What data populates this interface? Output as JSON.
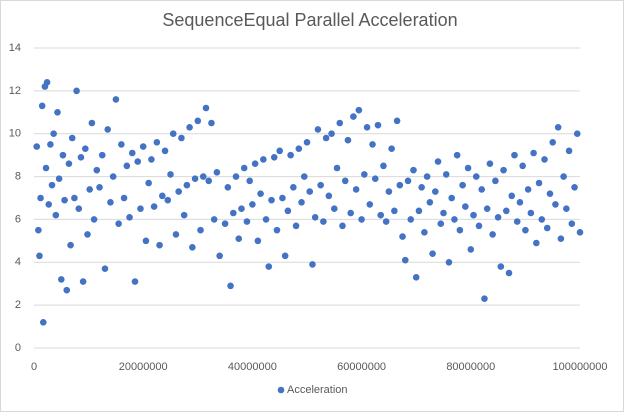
{
  "chart_data": {
    "type": "scatter",
    "title": "SequenceEqual Parallel Acceleration",
    "series": [
      {
        "name": "Acceleration",
        "color": "#4472c4",
        "x": [
          500000,
          800000,
          1000000,
          1200000,
          1500000,
          1700000,
          2000000,
          2200000,
          2400000,
          2700000,
          3000000,
          3300000,
          3600000,
          4000000,
          4300000,
          4600000,
          5000000,
          5300000,
          5600000,
          6000000,
          6400000,
          6700000,
          7000000,
          7400000,
          7800000,
          8200000,
          8600000,
          9000000,
          9400000,
          9800000,
          10200000,
          10600000,
          11000000,
          11500000,
          12000000,
          12500000,
          13000000,
          13500000,
          14000000,
          14500000,
          15000000,
          15500000,
          16000000,
          16500000,
          17000000,
          17500000,
          18000000,
          18500000,
          19000000,
          19500000,
          20000000,
          20500000,
          21000000,
          21500000,
          22000000,
          22500000,
          23000000,
          23500000,
          24000000,
          24500000,
          25000000,
          25500000,
          26000000,
          26500000,
          27000000,
          27500000,
          28000000,
          28500000,
          29000000,
          29500000,
          30000000,
          30500000,
          31000000,
          31500000,
          32000000,
          32500000,
          33000000,
          33500000,
          34000000,
          35000000,
          35500000,
          36000000,
          36500000,
          37000000,
          37500000,
          38000000,
          38500000,
          39000000,
          39500000,
          40000000,
          40500000,
          41000000,
          41500000,
          42000000,
          42500000,
          43000000,
          43500000,
          44000000,
          44500000,
          45000000,
          45500000,
          46000000,
          46500000,
          47000000,
          47500000,
          48000000,
          48500000,
          49000000,
          49500000,
          50000000,
          50500000,
          51000000,
          51500000,
          52000000,
          52500000,
          53000000,
          53500000,
          54000000,
          54500000,
          55000000,
          55500000,
          56000000,
          56500000,
          57000000,
          57500000,
          58000000,
          58500000,
          59000000,
          59500000,
          60000000,
          60500000,
          61000000,
          61500000,
          62000000,
          62500000,
          63000000,
          63500000,
          64000000,
          64500000,
          65000000,
          65500000,
          66000000,
          66500000,
          67000000,
          67500000,
          68000000,
          68500000,
          69000000,
          69500000,
          70000000,
          70500000,
          71000000,
          71500000,
          72000000,
          72500000,
          73000000,
          73500000,
          74000000,
          74500000,
          75000000,
          75500000,
          76000000,
          76500000,
          77000000,
          77500000,
          78000000,
          78500000,
          79000000,
          79500000,
          80000000,
          80500000,
          81000000,
          81500000,
          82000000,
          82500000,
          83000000,
          83500000,
          84000000,
          84500000,
          85000000,
          85500000,
          86000000,
          86500000,
          87000000,
          87500000,
          88000000,
          88500000,
          89000000,
          89500000,
          90000000,
          90500000,
          91000000,
          91500000,
          92000000,
          92500000,
          93000000,
          93500000,
          94000000,
          94500000,
          95000000,
          95500000,
          96000000,
          96500000,
          97000000,
          97500000,
          98000000,
          98500000,
          99000000,
          99500000,
          100000000
        ],
        "values": [
          9.4,
          5.5,
          4.3,
          7.0,
          11.3,
          1.2,
          12.2,
          8.4,
          12.4,
          6.7,
          9.5,
          7.6,
          10.0,
          6.2,
          11.0,
          7.9,
          3.2,
          9.0,
          6.9,
          2.7,
          8.6,
          4.8,
          9.8,
          7.0,
          12.0,
          6.5,
          8.9,
          3.1,
          9.3,
          5.3,
          7.4,
          10.5,
          6.0,
          8.3,
          7.5,
          9.0,
          3.7,
          10.2,
          6.8,
          8.0,
          11.6,
          5.8,
          9.5,
          7.0,
          8.5,
          6.1,
          9.1,
          3.1,
          8.7,
          6.5,
          9.4,
          5.0,
          7.7,
          8.8,
          6.6,
          9.6,
          4.8,
          7.1,
          9.2,
          6.9,
          8.1,
          10.0,
          5.3,
          7.3,
          9.8,
          6.2,
          7.6,
          10.3,
          4.7,
          7.9,
          10.6,
          5.5,
          8.0,
          11.2,
          7.8,
          10.5,
          6.0,
          8.2,
          4.3,
          5.8,
          7.5,
          2.9,
          6.3,
          8.0,
          5.1,
          6.5,
          8.4,
          5.9,
          7.8,
          6.7,
          8.6,
          5.0,
          7.2,
          8.8,
          6.0,
          3.8,
          6.9,
          8.9,
          5.5,
          9.2,
          7.0,
          4.3,
          6.4,
          9.0,
          7.5,
          5.7,
          9.3,
          6.8,
          8.0,
          9.6,
          7.3,
          3.9,
          6.1,
          10.2,
          7.6,
          5.9,
          9.8,
          7.1,
          10.0,
          6.5,
          8.4,
          10.5,
          5.7,
          7.8,
          9.7,
          6.3,
          10.8,
          7.4,
          11.1,
          6.0,
          8.1,
          10.3,
          6.7,
          9.5,
          7.9,
          10.4,
          6.2,
          8.5,
          5.9,
          7.3,
          9.3,
          6.4,
          10.6,
          7.6,
          5.2,
          4.1,
          7.8,
          6.0,
          8.3,
          3.3,
          6.4,
          7.5,
          5.4,
          8.0,
          6.8,
          4.4,
          7.3,
          8.7,
          5.8,
          6.3,
          8.1,
          4.0,
          7.0,
          6.0,
          9.0,
          5.5,
          7.6,
          6.6,
          8.4,
          4.6,
          6.2,
          8.0,
          5.7,
          7.4,
          2.3,
          6.5,
          8.6,
          5.3,
          7.8,
          6.1,
          3.8,
          8.3,
          6.4,
          3.5,
          7.1,
          9.0,
          5.9,
          6.8,
          8.5,
          5.5,
          7.4,
          6.3,
          9.1,
          4.9,
          7.7,
          6.0,
          8.8,
          5.6,
          7.2,
          9.6,
          6.7,
          10.3,
          5.1,
          8.0,
          6.5,
          9.2,
          5.8,
          7.5,
          10.0,
          5.4
        ]
      }
    ],
    "xlim": [
      0,
      100000000
    ],
    "xticks": [
      0,
      20000000,
      40000000,
      60000000,
      80000000,
      100000000
    ],
    "ylim": [
      0,
      14
    ],
    "yticks": [
      0,
      2,
      4,
      6,
      8,
      10,
      12,
      14
    ],
    "grid": true,
    "legend": "bottom"
  }
}
